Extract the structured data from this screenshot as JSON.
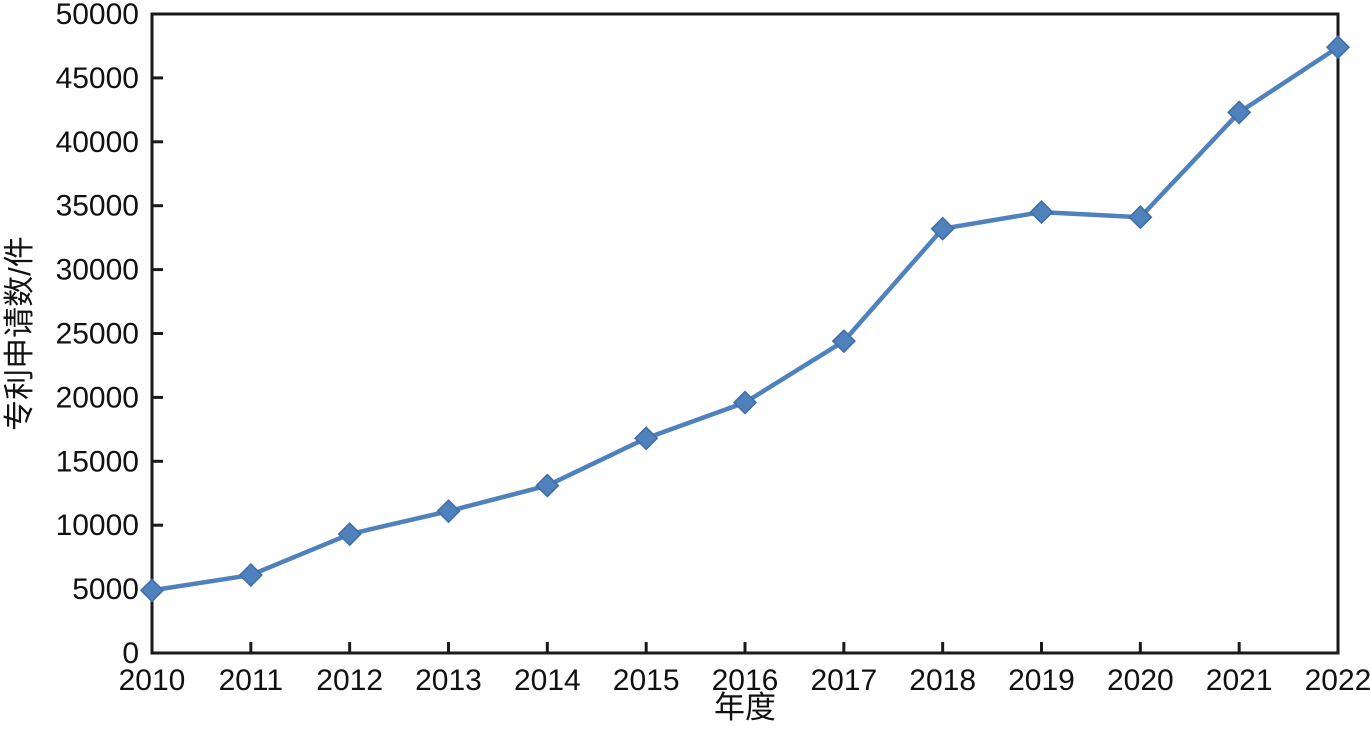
{
  "chart_data": {
    "type": "line",
    "title": "",
    "xlabel": "年度",
    "ylabel": "专利申请数/件",
    "x": [
      2010,
      2011,
      2012,
      2013,
      2014,
      2015,
      2016,
      2017,
      2018,
      2019,
      2020,
      2021,
      2022
    ],
    "series": [
      {
        "name": "专利申请数",
        "values": [
          4900,
          6100,
          9300,
          11100,
          13100,
          16800,
          19600,
          24400,
          33200,
          34500,
          34100,
          42300,
          47400
        ]
      }
    ],
    "ylim": [
      0,
      50000
    ],
    "ytick_step": 5000,
    "grid": false,
    "legend": "none",
    "line_color": "#4f81bd",
    "marker": "diamond",
    "marker_stroke": "#3f6da5",
    "axis_color": "#1a1a1a"
  }
}
